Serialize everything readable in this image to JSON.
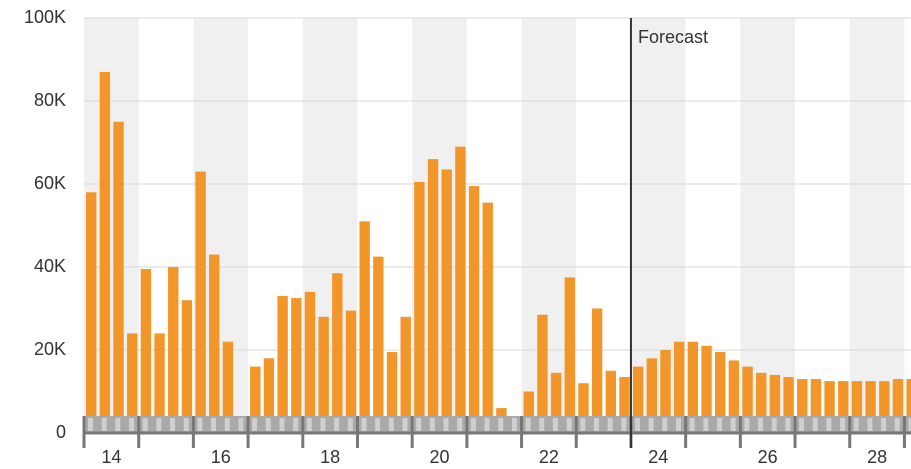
{
  "chart_data": {
    "type": "bar",
    "x": [
      14,
      14.25,
      14.5,
      14.75,
      15,
      15.25,
      15.5,
      15.75,
      16,
      16.25,
      16.5,
      16.75,
      17,
      17.25,
      17.5,
      17.75,
      18,
      18.25,
      18.5,
      18.75,
      19,
      19.25,
      19.5,
      19.75,
      20,
      20.25,
      20.5,
      20.75,
      21,
      21.25,
      21.5,
      21.75,
      22,
      22.25,
      22.5,
      22.75,
      23,
      23.25,
      23.5,
      23.75,
      24,
      24.25,
      24.5,
      24.75,
      25,
      25.25,
      25.5,
      25.75,
      26,
      26.25,
      26.5,
      26.75,
      27,
      27.25,
      27.5,
      27.75,
      28,
      28.25,
      28.5,
      28.75,
      29
    ],
    "values": [
      58000,
      87000,
      75000,
      24000,
      39500,
      24000,
      40000,
      32000,
      63000,
      43000,
      22000,
      4000,
      16000,
      18000,
      33000,
      32500,
      34000,
      28000,
      38500,
      29500,
      51000,
      42500,
      19500,
      28000,
      60500,
      66000,
      63500,
      69000,
      59500,
      55500,
      6000,
      4000,
      10000,
      28500,
      14500,
      37500,
      12000,
      30000,
      15000,
      13500,
      16000,
      18000,
      20000,
      22000,
      22000,
      21000,
      19500,
      17500,
      16000,
      14500,
      14000,
      13500,
      13000,
      13000,
      12500,
      12500,
      12500,
      12500,
      12500,
      13000,
      13000
    ],
    "color": "#f3962a",
    "xlim": [
      14,
      29.12
    ],
    "xticks": [
      14,
      16,
      18,
      20,
      22,
      24,
      26,
      28
    ],
    "day_boundaries": [
      14,
      15,
      16,
      17,
      18,
      19,
      20,
      21,
      22,
      23,
      24,
      25,
      26,
      27,
      28,
      29
    ],
    "ylim": [
      0,
      100000
    ],
    "yticks": [
      {
        "value": 0,
        "label": "0"
      },
      {
        "value": 20000,
        "label": "20K"
      },
      {
        "value": 40000,
        "label": "40K"
      },
      {
        "value": 60000,
        "label": "60K"
      },
      {
        "value": 80000,
        "label": "80K"
      },
      {
        "value": 100000,
        "label": "100K"
      }
    ],
    "grid": true,
    "annotations": [
      {
        "x": 24,
        "text": "Forecast"
      }
    ]
  }
}
